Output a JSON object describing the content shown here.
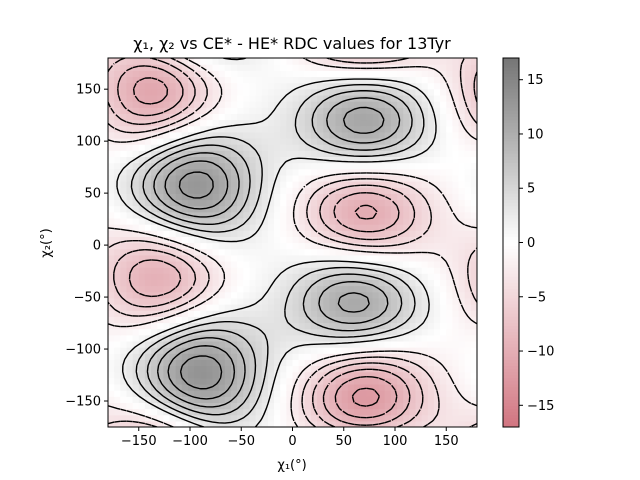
{
  "figure": {
    "title": "χ₁, χ₂ vs CE* - HE* RDC values for 13Tyr",
    "xlabel": "χ₁(°)",
    "ylabel": "χ₂(°)"
  },
  "chart_data": {
    "type": "heatmap",
    "title": "χ₁, χ₂ vs CE* - HE* RDC values for 13Tyr",
    "xlabel": "χ₁(°)",
    "ylabel": "χ₂(°)",
    "xlim": [
      -180,
      180
    ],
    "ylim": [
      -175,
      180
    ],
    "xticks": [
      -150,
      -100,
      -50,
      0,
      50,
      100,
      150
    ],
    "yticks": [
      -150,
      -100,
      -50,
      0,
      50,
      100,
      150
    ],
    "colorbar": {
      "range": [
        -17,
        17
      ],
      "ticks": [
        -15,
        -10,
        -5,
        0,
        5,
        10,
        15
      ],
      "colormap": "RdGy (alpha 0.6)",
      "low_color": "#b2182b",
      "mid_color": "#ffffff",
      "high_color": "#1a1a1a"
    },
    "contours": {
      "levels": [
        -16,
        -14,
        -12,
        -10,
        -8,
        -6,
        -4,
        -2,
        2,
        4,
        6,
        8,
        10,
        12,
        14,
        16
      ],
      "positive_style": "solid",
      "negative_style": "dashed",
      "color": "#000000"
    },
    "maxima": [
      {
        "chi1": 70,
        "chi2": 118,
        "value": 15
      },
      {
        "chi1": -100,
        "chi2": 57,
        "value": 16
      },
      {
        "chi1": 63,
        "chi2": -55,
        "value": 15
      },
      {
        "chi1": -95,
        "chi2": -123,
        "value": 16
      }
    ],
    "minima": [
      {
        "chi1": -130,
        "chi2": 148,
        "value": -14
      },
      {
        "chi1": 70,
        "chi2": 32,
        "value": -15
      },
      {
        "chi1": -125,
        "chi2": -30,
        "value": -13
      },
      {
        "chi1": 70,
        "chi2": -145,
        "value": -16
      }
    ]
  }
}
